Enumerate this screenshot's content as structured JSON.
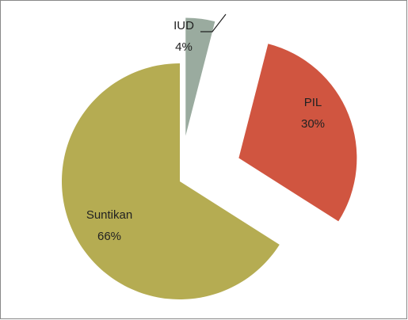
{
  "chart_data": {
    "type": "pie",
    "categories": [
      "IUD",
      "PIL",
      "Suntikan"
    ],
    "values": [
      4,
      30,
      66
    ],
    "value_labels": [
      "4%",
      "30%",
      "66%"
    ],
    "colors": [
      "#9aab9f",
      "#d05540",
      "#b5ac52"
    ]
  }
}
